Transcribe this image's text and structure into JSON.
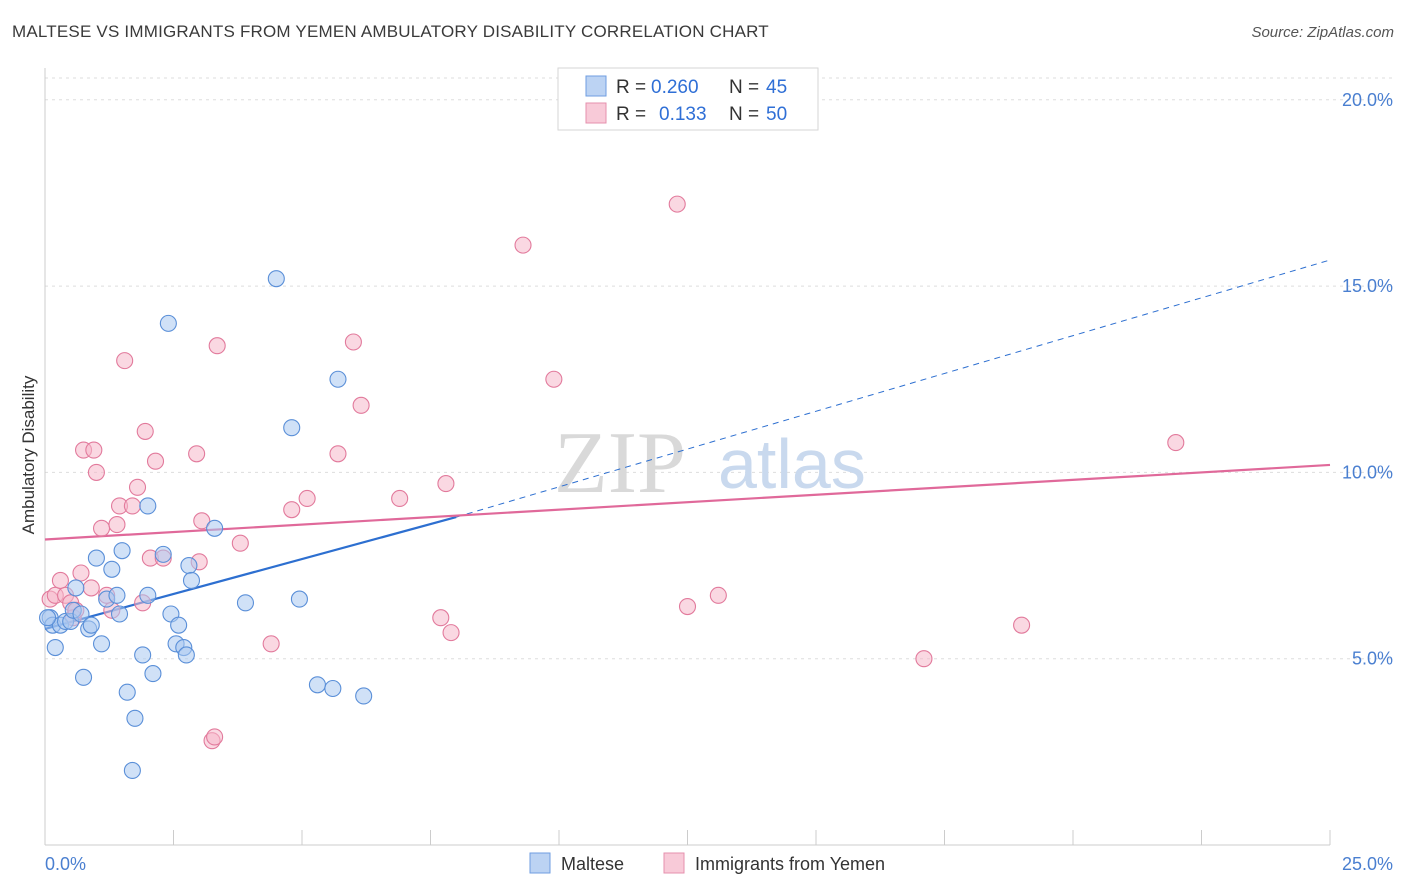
{
  "title": "MALTESE VS IMMIGRANTS FROM YEMEN AMBULATORY DISABILITY CORRELATION CHART",
  "source": "Source: ZipAtlas.com",
  "watermark": {
    "zip": "ZIP",
    "atlas": "atlas"
  },
  "legend": {
    "r_label": "R =",
    "n_label": "N =",
    "series": [
      {
        "name": "Maltese",
        "r": "0.260",
        "n": "45"
      },
      {
        "name": "Immigrants from Yemen",
        "r": "0.133",
        "n": "50"
      }
    ]
  },
  "colors": {
    "blue_fill": "#a9c8f0",
    "blue_stroke": "#5a8fd8",
    "blue_line": "#2d6fd0",
    "pink_fill": "#f5b8cb",
    "pink_stroke": "#e27a9c",
    "pink_line": "#e0699a",
    "grid": "#dddddd",
    "tick_text": "#4a7fd0"
  },
  "chart_data": {
    "type": "scatter",
    "title": "MALTESE VS IMMIGRANTS FROM YEMEN AMBULATORY DISABILITY CORRELATION CHART",
    "xlabel": "",
    "ylabel": "Ambulatory Disability",
    "xlim": [
      0,
      25
    ],
    "ylim": [
      0,
      20.8
    ],
    "x_tick_labels": [
      {
        "value": 0,
        "label": "0.0%"
      },
      {
        "value": 25,
        "label": "25.0%"
      }
    ],
    "y_tick_labels": [
      {
        "value": 5,
        "label": "5.0%"
      },
      {
        "value": 10,
        "label": "10.0%"
      },
      {
        "value": 15,
        "label": "15.0%"
      },
      {
        "value": 20,
        "label": "20.0%"
      }
    ],
    "grid": true,
    "legend_position": "top-center",
    "series": [
      {
        "name": "Maltese",
        "points": [
          [
            0.1,
            6.1
          ],
          [
            0.15,
            5.9
          ],
          [
            0.2,
            5.3
          ],
          [
            0.3,
            5.9
          ],
          [
            0.4,
            6.0
          ],
          [
            0.5,
            6.0
          ],
          [
            0.55,
            6.3
          ],
          [
            0.6,
            6.9
          ],
          [
            0.7,
            6.2
          ],
          [
            0.75,
            4.5
          ],
          [
            0.85,
            5.8
          ],
          [
            0.9,
            5.9
          ],
          [
            1.0,
            7.7
          ],
          [
            1.1,
            5.4
          ],
          [
            1.2,
            6.6
          ],
          [
            1.3,
            7.4
          ],
          [
            1.4,
            6.7
          ],
          [
            1.45,
            6.2
          ],
          [
            1.5,
            7.9
          ],
          [
            1.6,
            4.1
          ],
          [
            1.7,
            2.0
          ],
          [
            1.75,
            3.4
          ],
          [
            1.9,
            5.1
          ],
          [
            2.0,
            6.7
          ],
          [
            2.0,
            9.1
          ],
          [
            2.1,
            4.6
          ],
          [
            2.3,
            7.8
          ],
          [
            2.4,
            14.0
          ],
          [
            2.45,
            6.2
          ],
          [
            2.55,
            5.4
          ],
          [
            2.6,
            5.9
          ],
          [
            2.7,
            5.3
          ],
          [
            2.75,
            5.1
          ],
          [
            2.8,
            7.5
          ],
          [
            2.85,
            7.1
          ],
          [
            3.3,
            8.5
          ],
          [
            3.9,
            6.5
          ],
          [
            4.5,
            15.2
          ],
          [
            4.8,
            11.2
          ],
          [
            4.95,
            6.6
          ],
          [
            5.3,
            4.3
          ],
          [
            5.6,
            4.2
          ],
          [
            5.7,
            12.5
          ],
          [
            6.2,
            4.0
          ],
          [
            0.05,
            6.1
          ]
        ],
        "trend": {
          "x_start": 0,
          "y_start": 5.8,
          "x_solid_end": 8.0,
          "y_solid_end": 8.8,
          "x_dash_end": 25,
          "y_dash_end": 15.7
        }
      },
      {
        "name": "Immigrants from Yemen",
        "points": [
          [
            0.1,
            6.6
          ],
          [
            0.2,
            6.7
          ],
          [
            0.3,
            7.1
          ],
          [
            0.4,
            6.7
          ],
          [
            0.5,
            6.5
          ],
          [
            0.55,
            6.1
          ],
          [
            0.6,
            6.3
          ],
          [
            0.7,
            7.3
          ],
          [
            0.75,
            10.6
          ],
          [
            0.9,
            6.9
          ],
          [
            0.95,
            10.6
          ],
          [
            1.0,
            10.0
          ],
          [
            1.1,
            8.5
          ],
          [
            1.2,
            6.7
          ],
          [
            1.3,
            6.3
          ],
          [
            1.4,
            8.6
          ],
          [
            1.45,
            9.1
          ],
          [
            1.55,
            13.0
          ],
          [
            1.7,
            9.1
          ],
          [
            1.8,
            9.6
          ],
          [
            1.9,
            6.5
          ],
          [
            1.95,
            11.1
          ],
          [
            2.05,
            7.7
          ],
          [
            2.15,
            10.3
          ],
          [
            2.3,
            7.7
          ],
          [
            2.95,
            10.5
          ],
          [
            3.0,
            7.6
          ],
          [
            3.05,
            8.7
          ],
          [
            3.25,
            2.8
          ],
          [
            3.3,
            2.9
          ],
          [
            3.35,
            13.4
          ],
          [
            3.8,
            8.1
          ],
          [
            4.4,
            5.4
          ],
          [
            4.8,
            9.0
          ],
          [
            5.1,
            9.3
          ],
          [
            5.7,
            10.5
          ],
          [
            6.0,
            13.5
          ],
          [
            6.15,
            11.8
          ],
          [
            6.9,
            9.3
          ],
          [
            7.7,
            6.1
          ],
          [
            7.8,
            9.7
          ],
          [
            7.9,
            5.7
          ],
          [
            9.3,
            16.1
          ],
          [
            9.9,
            12.5
          ],
          [
            12.3,
            17.2
          ],
          [
            12.5,
            6.4
          ],
          [
            13.1,
            6.7
          ],
          [
            17.1,
            5.0
          ],
          [
            19.0,
            5.9
          ],
          [
            22.0,
            10.8
          ]
        ],
        "trend": {
          "x_start": 0,
          "y_start": 8.2,
          "x_end": 25,
          "y_end": 10.2
        }
      }
    ]
  }
}
